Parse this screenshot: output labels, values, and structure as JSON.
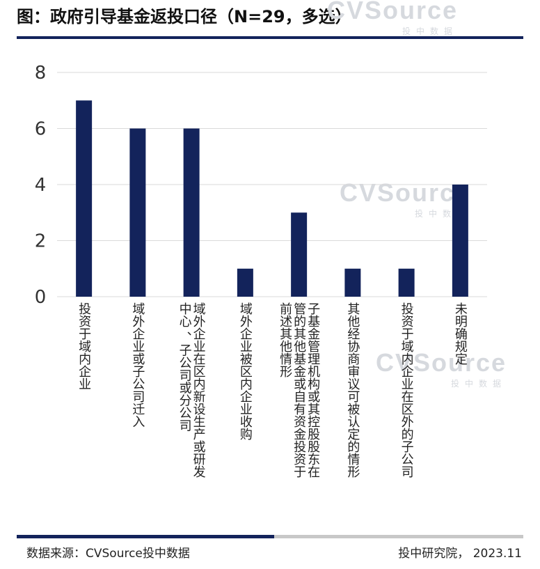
{
  "title": "图：政府引导基金返投口径（N=29，多选）",
  "watermark": {
    "brand": "CVSource",
    "sub": "投中数据"
  },
  "footer": {
    "source": "数据来源：CVSource投中数据",
    "credit": "投中研究院， 2023.11"
  },
  "colors": {
    "bar": "#13235b",
    "grid": "#d9d9d9",
    "accent": "#13235b",
    "muted": "#c8c8c8"
  },
  "chart_data": {
    "type": "bar",
    "categories": [
      [
        "投资于域内企业"
      ],
      [
        "域外企业或子公司迁入"
      ],
      [
        "域外企业在区内新设生产或研发",
        "中心 、子公司或分公司"
      ],
      [
        "域外企业被区内企业收购"
      ],
      [
        "子基金管理机构或其控股股东在",
        "管的其他基金或自有资金投资于",
        "前述其他情形"
      ],
      [
        "其他经协商审议可被认定的情形"
      ],
      [
        "投资于域内企业在区外的子公司"
      ],
      [
        "未明确规定"
      ]
    ],
    "values": [
      7,
      6,
      6,
      1,
      3,
      1,
      1,
      4
    ],
    "ylim": [
      0,
      8
    ],
    "yticks": [
      "0",
      "2",
      "4",
      "6",
      "8"
    ],
    "grid": true,
    "legend": "none"
  }
}
